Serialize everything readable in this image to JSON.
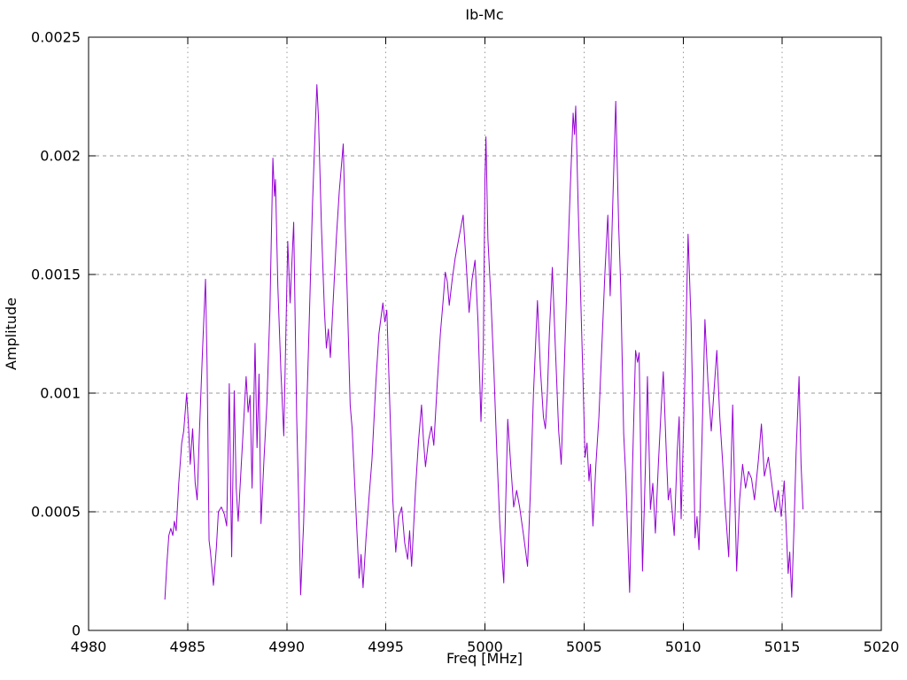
{
  "chart_data": {
    "type": "line",
    "title": "Ib-Mc",
    "xlabel": "Freq [MHz]",
    "ylabel": "Amplitude",
    "xlim": [
      4980,
      5020
    ],
    "ylim": [
      0,
      0.0025
    ],
    "grid": true,
    "legend_position": "none",
    "xticks": {
      "values": [
        4980,
        4985,
        4990,
        4995,
        5000,
        5005,
        5010,
        5015,
        5020
      ],
      "labels": [
        "4980",
        "4985",
        "4990",
        "4995",
        "5000",
        "5005",
        "5010",
        "5015",
        "5020"
      ]
    },
    "yticks": {
      "values": [
        0,
        0.0005,
        0.001,
        0.0015,
        0.002,
        0.0025
      ],
      "labels": [
        "0",
        "0.0005",
        "0.001",
        "0.0015",
        "0.002",
        "0.0025"
      ]
    },
    "grid_color": "#9a9a9a",
    "frame_color": "#000000",
    "background_color": "#ffffff",
    "series": [
      {
        "name": "Ib-Mc",
        "color": "#9400d3",
        "points": [
          [
            4983.85,
            0.00013
          ],
          [
            4983.95,
            0.00028
          ],
          [
            4984.05,
            0.0004
          ],
          [
            4984.15,
            0.00043
          ],
          [
            4984.25,
            0.0004
          ],
          [
            4984.33,
            0.00046
          ],
          [
            4984.42,
            0.00042
          ],
          [
            4984.55,
            0.00062
          ],
          [
            4984.7,
            0.00079
          ],
          [
            4984.8,
            0.00084
          ],
          [
            4984.95,
            0.001
          ],
          [
            4985.05,
            0.00085
          ],
          [
            4985.13,
            0.0007
          ],
          [
            4985.25,
            0.00085
          ],
          [
            4985.38,
            0.00062
          ],
          [
            4985.48,
            0.00055
          ],
          [
            4985.6,
            0.00085
          ],
          [
            4985.75,
            0.00118
          ],
          [
            4985.9,
            0.00148
          ],
          [
            4985.98,
            0.00112
          ],
          [
            4986.08,
            0.00038
          ],
          [
            4986.15,
            0.00033
          ],
          [
            4986.3,
            0.00019
          ],
          [
            4986.45,
            0.00035
          ],
          [
            4986.55,
            0.0005
          ],
          [
            4986.7,
            0.00052
          ],
          [
            4986.85,
            0.00049
          ],
          [
            4986.97,
            0.00044
          ],
          [
            4987.1,
            0.00104
          ],
          [
            4987.22,
            0.00031
          ],
          [
            4987.35,
            0.00101
          ],
          [
            4987.45,
            0.0006
          ],
          [
            4987.55,
            0.00046
          ],
          [
            4987.7,
            0.00069
          ],
          [
            4987.95,
            0.00107
          ],
          [
            4988.05,
            0.00092
          ],
          [
            4988.15,
            0.00099
          ],
          [
            4988.25,
            0.0006
          ],
          [
            4988.4,
            0.00121
          ],
          [
            4988.5,
            0.00077
          ],
          [
            4988.6,
            0.00108
          ],
          [
            4988.7,
            0.00045
          ],
          [
            4988.85,
            0.00072
          ],
          [
            4989.0,
            0.00096
          ],
          [
            4989.15,
            0.00135
          ],
          [
            4989.3,
            0.00199
          ],
          [
            4989.38,
            0.00183
          ],
          [
            4989.43,
            0.0019
          ],
          [
            4989.55,
            0.00145
          ],
          [
            4989.7,
            0.0011
          ],
          [
            4989.85,
            0.00082
          ],
          [
            4990.05,
            0.00164
          ],
          [
            4990.17,
            0.00138
          ],
          [
            4990.35,
            0.00172
          ],
          [
            4990.5,
            0.0009
          ],
          [
            4990.6,
            0.00055
          ],
          [
            4990.7,
            0.00015
          ],
          [
            4990.85,
            0.00045
          ],
          [
            4991.0,
            0.0009
          ],
          [
            4991.15,
            0.00135
          ],
          [
            4991.3,
            0.0018
          ],
          [
            4991.45,
            0.00215
          ],
          [
            4991.52,
            0.0023
          ],
          [
            4991.6,
            0.00216
          ],
          [
            4991.75,
            0.0017
          ],
          [
            4991.9,
            0.00135
          ],
          [
            4992.0,
            0.00119
          ],
          [
            4992.1,
            0.00127
          ],
          [
            4992.2,
            0.00115
          ],
          [
            4992.35,
            0.0014
          ],
          [
            4992.5,
            0.00165
          ],
          [
            4992.65,
            0.00185
          ],
          [
            4992.85,
            0.00205
          ],
          [
            4992.95,
            0.0017
          ],
          [
            4993.05,
            0.00142
          ],
          [
            4993.2,
            0.00095
          ],
          [
            4993.3,
            0.00085
          ],
          [
            4993.45,
            0.00058
          ],
          [
            4993.65,
            0.00022
          ],
          [
            4993.75,
            0.00032
          ],
          [
            4993.85,
            0.00018
          ],
          [
            4994.0,
            0.00039
          ],
          [
            4994.15,
            0.00056
          ],
          [
            4994.3,
            0.00072
          ],
          [
            4994.5,
            0.00105
          ],
          [
            4994.65,
            0.00125
          ],
          [
            4994.85,
            0.00138
          ],
          [
            4994.95,
            0.0013
          ],
          [
            4995.05,
            0.00135
          ],
          [
            4995.2,
            0.00095
          ],
          [
            4995.35,
            0.00055
          ],
          [
            4995.5,
            0.00033
          ],
          [
            4995.65,
            0.00048
          ],
          [
            4995.8,
            0.00052
          ],
          [
            4995.95,
            0.00037
          ],
          [
            4996.1,
            0.0003
          ],
          [
            4996.2,
            0.00042
          ],
          [
            4996.3,
            0.00027
          ],
          [
            4996.5,
            0.0006
          ],
          [
            4996.65,
            0.0008
          ],
          [
            4996.8,
            0.00095
          ],
          [
            4996.9,
            0.0008
          ],
          [
            4997.0,
            0.00069
          ],
          [
            4997.15,
            0.0008
          ],
          [
            4997.3,
            0.00086
          ],
          [
            4997.42,
            0.00078
          ],
          [
            4997.6,
            0.00105
          ],
          [
            4997.75,
            0.00125
          ],
          [
            4997.9,
            0.0014
          ],
          [
            4998.0,
            0.00151
          ],
          [
            4998.1,
            0.00147
          ],
          [
            4998.2,
            0.00137
          ],
          [
            4998.35,
            0.00148
          ],
          [
            4998.5,
            0.00157
          ],
          [
            4998.7,
            0.00166
          ],
          [
            4998.9,
            0.00175
          ],
          [
            4999.05,
            0.00155
          ],
          [
            4999.2,
            0.00134
          ],
          [
            4999.35,
            0.00148
          ],
          [
            4999.5,
            0.00156
          ],
          [
            4999.65,
            0.0013
          ],
          [
            4999.8,
            0.00088
          ],
          [
            4999.92,
            0.0012
          ],
          [
            5000.0,
            0.0019
          ],
          [
            5000.05,
            0.00208
          ],
          [
            5000.15,
            0.00165
          ],
          [
            5000.3,
            0.0014
          ],
          [
            5000.45,
            0.0011
          ],
          [
            5000.6,
            0.00075
          ],
          [
            5000.75,
            0.00045
          ],
          [
            5000.95,
            0.0002
          ],
          [
            5001.15,
            0.00089
          ],
          [
            5001.3,
            0.0007
          ],
          [
            5001.45,
            0.00052
          ],
          [
            5001.6,
            0.00059
          ],
          [
            5001.75,
            0.00052
          ],
          [
            5001.95,
            0.0004
          ],
          [
            5002.15,
            0.00027
          ],
          [
            5002.3,
            0.0006
          ],
          [
            5002.45,
            0.001
          ],
          [
            5002.65,
            0.00139
          ],
          [
            5002.8,
            0.0011
          ],
          [
            5002.95,
            0.0009
          ],
          [
            5003.05,
            0.00085
          ],
          [
            5003.15,
            0.001
          ],
          [
            5003.25,
            0.00125
          ],
          [
            5003.4,
            0.00153
          ],
          [
            5003.55,
            0.0012
          ],
          [
            5003.72,
            0.00084
          ],
          [
            5003.85,
            0.0007
          ],
          [
            5004.0,
            0.0011
          ],
          [
            5004.15,
            0.0015
          ],
          [
            5004.3,
            0.00185
          ],
          [
            5004.45,
            0.00218
          ],
          [
            5004.52,
            0.00209
          ],
          [
            5004.58,
            0.00221
          ],
          [
            5004.7,
            0.0018
          ],
          [
            5004.85,
            0.00135
          ],
          [
            5004.95,
            0.00105
          ],
          [
            5005.05,
            0.00073
          ],
          [
            5005.15,
            0.00079
          ],
          [
            5005.25,
            0.00063
          ],
          [
            5005.32,
            0.0007
          ],
          [
            5005.45,
            0.00044
          ],
          [
            5005.6,
            0.0007
          ],
          [
            5005.75,
            0.0009
          ],
          [
            5005.9,
            0.0012
          ],
          [
            5006.05,
            0.0015
          ],
          [
            5006.2,
            0.00175
          ],
          [
            5006.32,
            0.00141
          ],
          [
            5006.45,
            0.0018
          ],
          [
            5006.6,
            0.00223
          ],
          [
            5006.75,
            0.0017
          ],
          [
            5006.85,
            0.00145
          ],
          [
            5007.0,
            0.00083
          ],
          [
            5007.1,
            0.00066
          ],
          [
            5007.3,
            0.00016
          ],
          [
            5007.45,
            0.0007
          ],
          [
            5007.6,
            0.00118
          ],
          [
            5007.7,
            0.00113
          ],
          [
            5007.78,
            0.00117
          ],
          [
            5007.95,
            0.00025
          ],
          [
            5008.1,
            0.0007
          ],
          [
            5008.2,
            0.00107
          ],
          [
            5008.35,
            0.00051
          ],
          [
            5008.47,
            0.00062
          ],
          [
            5008.6,
            0.00041
          ],
          [
            5008.75,
            0.0007
          ],
          [
            5008.9,
            0.00095
          ],
          [
            5009.0,
            0.00109
          ],
          [
            5009.15,
            0.00075
          ],
          [
            5009.25,
            0.00055
          ],
          [
            5009.35,
            0.0006
          ],
          [
            5009.55,
            0.0004
          ],
          [
            5009.7,
            0.00075
          ],
          [
            5009.8,
            0.0009
          ],
          [
            5009.9,
            0.00047
          ],
          [
            5010.1,
            0.0011
          ],
          [
            5010.25,
            0.00167
          ],
          [
            5010.4,
            0.0013
          ],
          [
            5010.5,
            0.0009
          ],
          [
            5010.6,
            0.00039
          ],
          [
            5010.7,
            0.00048
          ],
          [
            5010.8,
            0.00034
          ],
          [
            5010.95,
            0.0008
          ],
          [
            5011.1,
            0.00131
          ],
          [
            5011.25,
            0.00105
          ],
          [
            5011.42,
            0.00084
          ],
          [
            5011.55,
            0.001
          ],
          [
            5011.7,
            0.00118
          ],
          [
            5011.85,
            0.0009
          ],
          [
            5012.0,
            0.0007
          ],
          [
            5012.1,
            0.00055
          ],
          [
            5012.3,
            0.00031
          ],
          [
            5012.5,
            0.00095
          ],
          [
            5012.7,
            0.00025
          ],
          [
            5012.85,
            0.00055
          ],
          [
            5013.0,
            0.0007
          ],
          [
            5013.15,
            0.0006
          ],
          [
            5013.3,
            0.00067
          ],
          [
            5013.45,
            0.00064
          ],
          [
            5013.6,
            0.00055
          ],
          [
            5013.8,
            0.00072
          ],
          [
            5013.95,
            0.00087
          ],
          [
            5014.1,
            0.00065
          ],
          [
            5014.3,
            0.00073
          ],
          [
            5014.5,
            0.0006
          ],
          [
            5014.65,
            0.0005
          ],
          [
            5014.8,
            0.00059
          ],
          [
            5014.95,
            0.00048
          ],
          [
            5015.1,
            0.00063
          ],
          [
            5015.3,
            0.00024
          ],
          [
            5015.38,
            0.00033
          ],
          [
            5015.48,
            0.00014
          ],
          [
            5015.6,
            0.00045
          ],
          [
            5015.7,
            0.00075
          ],
          [
            5015.85,
            0.00107
          ],
          [
            5015.95,
            0.0007
          ],
          [
            5016.05,
            0.00051
          ]
        ]
      }
    ]
  }
}
